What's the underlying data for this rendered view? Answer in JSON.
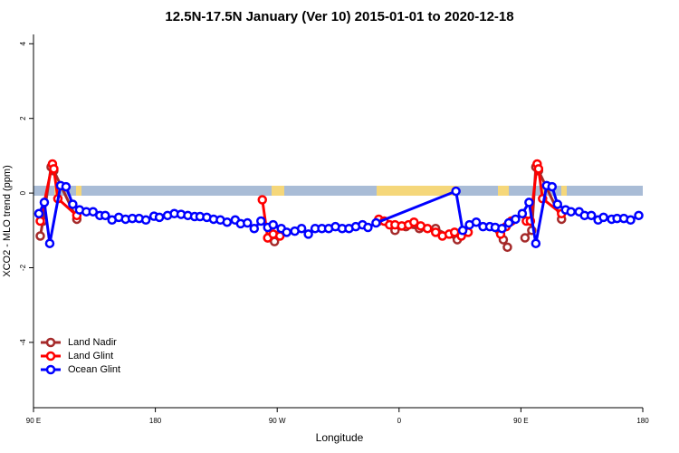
{
  "chart_data": {
    "type": "line",
    "title": "12.5N-17.5N January (Ver 10)   2015-01-01 to 2020-12-18",
    "x_label": "Longitude",
    "y_label": "XCO2 - MLO trend (ppm)",
    "xlim": [
      90,
      540
    ],
    "xticks": [
      {
        "value": 90,
        "label": "90 E"
      },
      180,
      {
        "value": 270,
        "label": "90 W"
      },
      {
        "value": 360,
        "label": "0"
      },
      {
        "value": 450,
        "label": "90 E"
      },
      {
        "value": 540,
        "label": "180"
      }
    ],
    "ylim": [
      -5.75,
      4.25
    ],
    "yticks": [
      -4,
      -2,
      0,
      2,
      4
    ],
    "legend": "bottom left",
    "series": [
      {
        "name": "Land Nadir",
        "color": "#a52a2a",
        "x": [
          95,
          97,
          103,
          105,
          122,
          null,
          263,
          268,
          272,
          null,
          345,
          357,
          365,
          375,
          387,
          403,
          null,
          434,
          437,
          440,
          null,
          453,
          458,
          461,
          463,
          480
        ],
        "values": [
          -1.15,
          -0.75,
          0.7,
          0.6,
          -0.7,
          null,
          -1.2,
          -1.3,
          -1.1,
          null,
          -0.75,
          -1.0,
          -0.9,
          -0.95,
          -0.95,
          -1.25,
          null,
          -1.0,
          -1.25,
          -1.45,
          null,
          -1.2,
          -1.0,
          0.7,
          0.6,
          -0.7
        ]
      },
      {
        "name": "Land Glint",
        "color": "#ff0000",
        "x": [
          95,
          104,
          105,
          108,
          122,
          null,
          259,
          263,
          267,
          272,
          null,
          345,
          349,
          353,
          357,
          362,
          367,
          371,
          376,
          381,
          387,
          392,
          397,
          401,
          406,
          411,
          null,
          435,
          439,
          443,
          null,
          454,
          457,
          462,
          463,
          466,
          480
        ],
        "values": [
          -0.75,
          0.78,
          0.65,
          -0.15,
          -0.6,
          null,
          -0.18,
          -1.2,
          -1.1,
          -1.15,
          null,
          -0.7,
          -0.75,
          -0.85,
          -0.85,
          -0.88,
          -0.85,
          -0.78,
          -0.88,
          -0.95,
          -1.05,
          -1.15,
          -1.1,
          -1.05,
          -1.15,
          -1.05,
          null,
          -1.1,
          -0.9,
          -0.75,
          null,
          -0.75,
          -0.75,
          0.78,
          0.65,
          -0.15,
          -0.55
        ]
      },
      {
        "name": "Ocean Glint",
        "color": "#0000ff",
        "x": [
          94,
          98,
          102,
          110,
          114,
          119,
          124,
          129,
          134,
          139,
          143,
          148,
          153,
          158,
          163,
          168,
          173,
          179,
          183,
          189,
          194,
          199,
          204,
          209,
          213,
          218,
          223,
          228,
          233,
          239,
          243,
          248,
          253,
          258,
          263,
          267,
          273,
          277,
          283,
          288,
          293,
          298,
          303,
          308,
          313,
          318,
          323,
          328,
          333,
          337,
          343,
          402,
          407,
          412,
          417,
          422,
          427,
          431,
          436,
          441,
          446,
          451,
          456,
          461,
          469,
          473,
          477,
          483,
          487,
          493,
          497,
          502,
          507,
          511,
          517,
          521,
          526,
          531,
          537
        ],
        "values": [
          -0.55,
          -0.25,
          -1.35,
          0.2,
          0.17,
          -0.3,
          -0.45,
          -0.5,
          -0.5,
          -0.6,
          -0.6,
          -0.72,
          -0.65,
          -0.7,
          -0.68,
          -0.68,
          -0.72,
          -0.62,
          -0.65,
          -0.6,
          -0.55,
          -0.57,
          -0.6,
          -0.63,
          -0.63,
          -0.65,
          -0.7,
          -0.72,
          -0.78,
          -0.72,
          -0.82,
          -0.8,
          -0.95,
          -0.75,
          -0.92,
          -0.85,
          -0.95,
          -1.05,
          -1.02,
          -0.95,
          -1.1,
          -0.95,
          -0.95,
          -0.95,
          -0.9,
          -0.95,
          -0.95,
          -0.9,
          -0.85,
          -0.92,
          -0.8,
          0.05,
          -1.0,
          -0.85,
          -0.78,
          -0.9,
          -0.9,
          -0.92,
          -0.95,
          -0.8,
          -0.7,
          -0.55,
          -0.25,
          -1.35,
          0.2,
          0.17,
          -0.3,
          -0.45,
          -0.5,
          -0.5,
          -0.6,
          -0.6,
          -0.72,
          -0.65,
          -0.7,
          -0.68,
          -0.68,
          -0.72,
          -0.6
        ]
      }
    ]
  }
}
